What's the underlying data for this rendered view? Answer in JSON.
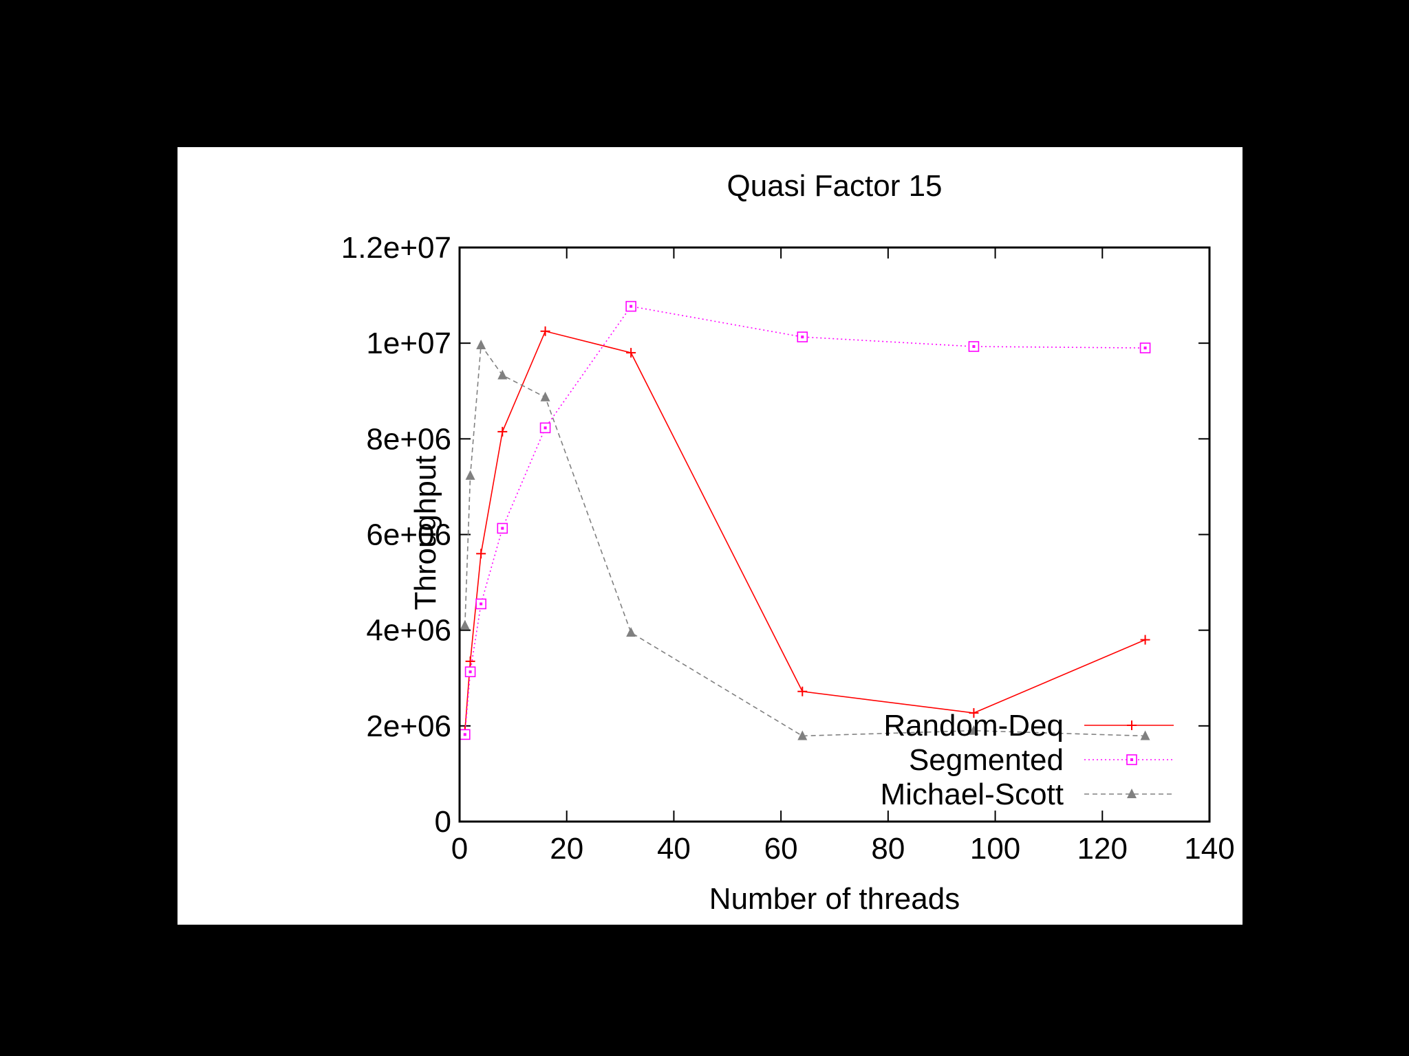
{
  "chart_data": {
    "type": "line",
    "title": "Quasi Factor 15",
    "xlabel": "Number of threads",
    "ylabel": "Throughput",
    "xlim": [
      0,
      140
    ],
    "ylim": [
      0,
      12000000
    ],
    "xticks": [
      0,
      20,
      40,
      60,
      80,
      100,
      120,
      140
    ],
    "xtick_labels": [
      "0",
      "20",
      "40",
      "60",
      "80",
      "100",
      "120",
      "140"
    ],
    "yticks": [
      0,
      2000000,
      4000000,
      6000000,
      8000000,
      10000000,
      12000000
    ],
    "ytick_labels": [
      "0",
      "2e+06",
      "4e+06",
      "6e+06",
      "8e+06",
      "1e+07",
      "1.2e+07"
    ],
    "legend_position": "bottom-right",
    "series": [
      {
        "name": "Random-Deq",
        "color": "#ff0000",
        "marker": "plus",
        "dash": "solid",
        "x": [
          1,
          2,
          4,
          8,
          16,
          32,
          64,
          96,
          128
        ],
        "y": [
          1900000,
          3350000,
          5600000,
          8150000,
          10250000,
          9800000,
          2720000,
          2270000,
          3800000
        ]
      },
      {
        "name": "Segmented",
        "color": "#ff00ff",
        "marker": "square",
        "dash": "dotted",
        "x": [
          1,
          2,
          4,
          8,
          16,
          32,
          64,
          96,
          128
        ],
        "y": [
          1820000,
          3130000,
          4550000,
          6130000,
          8230000,
          10770000,
          10130000,
          9930000,
          9900000
        ]
      },
      {
        "name": "Michael-Scott",
        "color": "#808080",
        "marker": "triangle",
        "dash": "dashed",
        "x": [
          1,
          2,
          4,
          8,
          16,
          32,
          64,
          96,
          128
        ],
        "y": [
          4100000,
          7230000,
          9960000,
          9330000,
          8870000,
          3950000,
          1790000,
          1900000,
          1790000
        ]
      }
    ]
  }
}
